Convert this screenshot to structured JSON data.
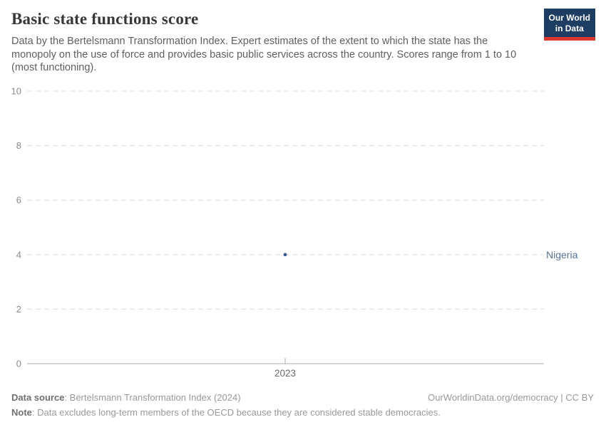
{
  "header": {
    "title": "Basic state functions score",
    "subtitle": "Data by the Bertelsmann Transformation Index. Expert estimates of the extent to which the state has the monopoly on the use of force and provides basic public services across the country. Scores range from 1 to 10 (most functioning).",
    "logo": {
      "line1": "Our World",
      "line2": "in Data",
      "bg_color": "#1d3d63",
      "bar_color": "#d93a2d"
    }
  },
  "chart_data": {
    "type": "scatter",
    "title": "Basic state functions score",
    "x": [
      2023
    ],
    "xtick_labels": [
      "2023"
    ],
    "series": [
      {
        "name": "Nigeria",
        "values": [
          4
        ],
        "color": "#3d5c8f",
        "label_color": "#577291"
      }
    ],
    "ylim": [
      0,
      10
    ],
    "yticks": [
      0,
      2,
      4,
      6,
      8,
      10
    ],
    "xlabel": "",
    "ylabel": "",
    "grid": "horizontal-dashed",
    "legend_position": "right-of-point",
    "colors": {
      "gridline": "#dcdcdc",
      "axis_line": "#a8a8a8",
      "ytick_label": "#8a8a8a",
      "xtick_label": "#6b6b6b"
    }
  },
  "footer": {
    "source_label": "Data source",
    "source_text": ": Bertelsmann Transformation Index (2024)",
    "url_text": "OurWorldinData.org/democracy | CC BY",
    "note_label": "Note",
    "note_text": ": Data excludes long-term members of the OECD because they are considered stable democracies."
  }
}
